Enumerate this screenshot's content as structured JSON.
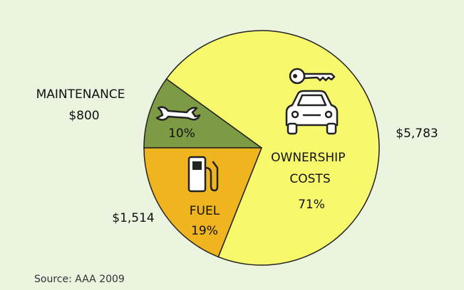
{
  "chart_data": {
    "type": "pie",
    "categories": [
      "MAINTENANCE",
      "OWNERSHIP COSTS",
      "FUEL"
    ],
    "values": [
      10,
      71,
      19
    ],
    "value_labels": [
      "10%",
      "71%",
      "19%"
    ],
    "amounts": [
      "$800",
      "$5,783",
      "$1,514"
    ],
    "colors": [
      "#7d9a44",
      "#f8f86c",
      "#f0b41e"
    ],
    "source": "Source: AAA 2009"
  }
}
